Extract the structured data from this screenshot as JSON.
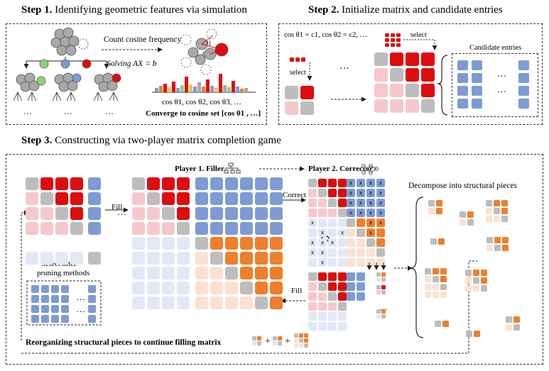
{
  "step1": {
    "num": "Step 1.",
    "title": "Identifying geometric features via simulation",
    "count_label": "Count cosine frequency",
    "solve_label": "Solving  AX = b",
    "cos_list": "cos θ1, cos θ2, cos θ3, …",
    "converge": "Converge to cosine set [cos θ1 , …]",
    "ellipsis": "…",
    "theta1": "θ1",
    "theta2": "θ2"
  },
  "step2": {
    "num": "Step 2.",
    "title": "Initialize matrix and candidate entries",
    "eq": "cos θ1 = c1, cos θ2 = c2, …",
    "select": "select",
    "candidate": "Candidate  entries",
    "ellipsis": "…"
  },
  "step3": {
    "num": "Step 3.",
    "title": "Constructing  via two-player matrix completion game",
    "player1": "Player 1. Filler",
    "player2": "Player 2. Corrector",
    "fill": "Fill",
    "correct": "Correct",
    "select_after": "Select after",
    "pruning": "pruning methods",
    "decompose": "Decompose into structural pieces",
    "reorganize": "Reorganizing structural pieces to continue filling matrix",
    "plus": "+",
    "x": "x",
    "ellipsis": "…"
  },
  "colors": {
    "red": "#dd0d0d",
    "pink": "#f6c8cb",
    "gray": "#bdbdbd",
    "blue": "#7e9bd3",
    "lightblue": "#e2e8f6",
    "orange": "#ef7f2a",
    "peach": "#fbe1d0"
  }
}
